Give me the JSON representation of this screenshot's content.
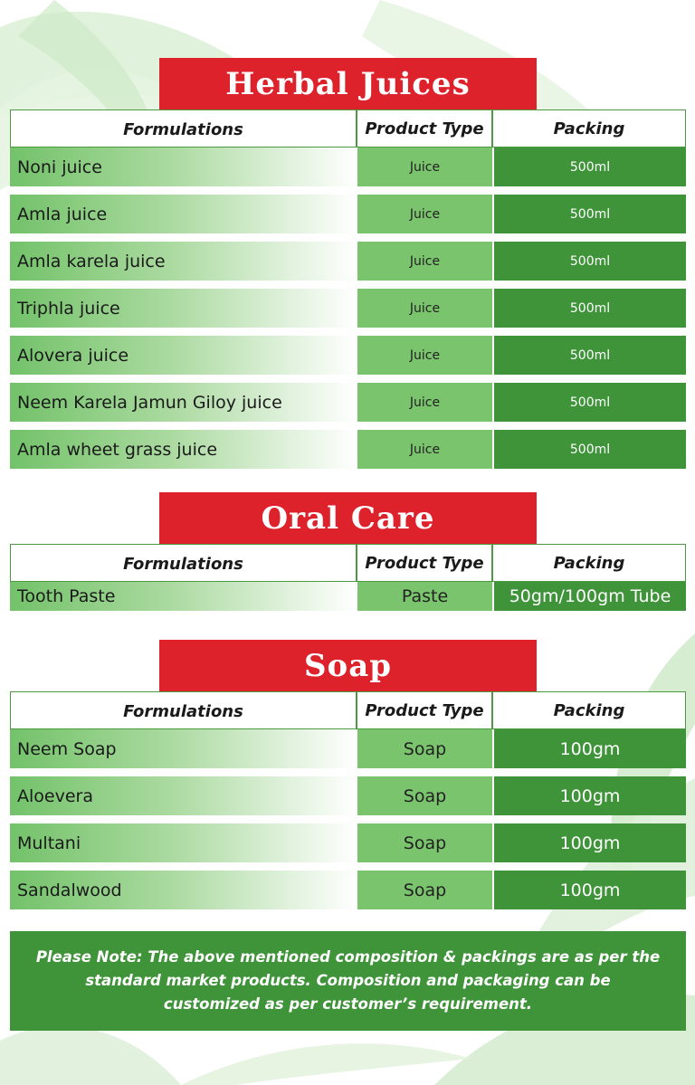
{
  "colors": {
    "banner_red": "#dd222b",
    "packing_green": "#3f943a",
    "type_green": "#7ac46d",
    "formulation_gradient": "#73c26a"
  },
  "columns": {
    "formulations": "Formulations",
    "product_type": "Product Type",
    "packing": "Packing"
  },
  "sections": [
    {
      "title": "Herbal Juices",
      "rows": [
        {
          "name": "Noni juice",
          "type": "Juice",
          "packing": "500ml"
        },
        {
          "name": "Amla juice",
          "type": "Juice",
          "packing": "500ml"
        },
        {
          "name": "Amla karela juice",
          "type": "Juice",
          "packing": "500ml"
        },
        {
          "name": "Triphla juice",
          "type": "Juice",
          "packing": "500ml"
        },
        {
          "name": "Alovera juice",
          "type": "Juice",
          "packing": "500ml"
        },
        {
          "name": "Neem Karela Jamun Giloy juice",
          "type": "Juice",
          "packing": "500ml"
        },
        {
          "name": "Amla wheet grass juice",
          "type": "Juice",
          "packing": "500ml"
        }
      ]
    },
    {
      "title": "Oral Care",
      "rows": [
        {
          "name": "Tooth Paste",
          "type": "Paste",
          "packing": "50gm/100gm Tube"
        }
      ]
    },
    {
      "title": "Soap",
      "rows": [
        {
          "name": "Neem Soap",
          "type": "Soap",
          "packing": "100gm"
        },
        {
          "name": "Aloevera",
          "type": "Soap",
          "packing": "100gm"
        },
        {
          "name": "Multani",
          "type": "Soap",
          "packing": "100gm"
        },
        {
          "name": "Sandalwood",
          "type": "Soap",
          "packing": "100gm"
        }
      ]
    }
  ],
  "note": "Please Note: The above mentioned composition & packings are as per the standard market products. Composition and packaging can be customized as per customer’s requirement."
}
